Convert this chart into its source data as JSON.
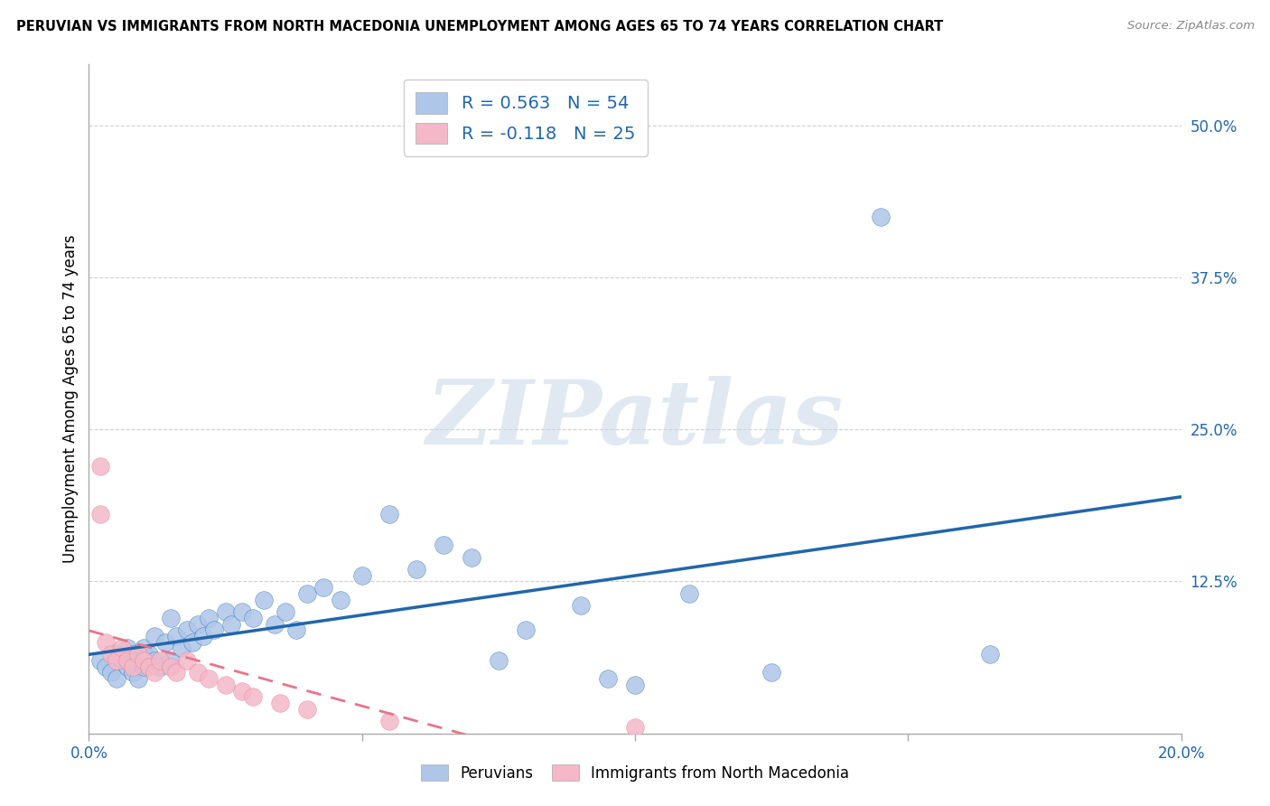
{
  "title": "PERUVIAN VS IMMIGRANTS FROM NORTH MACEDONIA UNEMPLOYMENT AMONG AGES 65 TO 74 YEARS CORRELATION CHART",
  "source": "Source: ZipAtlas.com",
  "ylabel": "Unemployment Among Ages 65 to 74 years",
  "xlim": [
    0.0,
    0.2
  ],
  "ylim": [
    -0.01,
    0.55
  ],
  "plot_ylim": [
    0.0,
    0.55
  ],
  "xticks": [
    0.0,
    0.05,
    0.1,
    0.15,
    0.2
  ],
  "xtick_labels": [
    "0.0%",
    "",
    "",
    "",
    "20.0%"
  ],
  "ytick_labels": [
    "12.5%",
    "25.0%",
    "37.5%",
    "50.0%"
  ],
  "yticks": [
    0.125,
    0.25,
    0.375,
    0.5
  ],
  "blue_color": "#aec6e8",
  "blue_line_color": "#2166ac",
  "pink_color": "#f4b8c8",
  "pink_line_color": "#e8748a",
  "R_blue": 0.563,
  "N_blue": 54,
  "R_pink": -0.118,
  "N_pink": 25,
  "peruvians_x": [
    0.002,
    0.003,
    0.004,
    0.005,
    0.005,
    0.006,
    0.007,
    0.007,
    0.008,
    0.008,
    0.009,
    0.009,
    0.01,
    0.01,
    0.011,
    0.012,
    0.012,
    0.013,
    0.014,
    0.015,
    0.015,
    0.016,
    0.017,
    0.018,
    0.019,
    0.02,
    0.021,
    0.022,
    0.023,
    0.025,
    0.026,
    0.028,
    0.03,
    0.032,
    0.034,
    0.036,
    0.038,
    0.04,
    0.043,
    0.046,
    0.05,
    0.055,
    0.06,
    0.065,
    0.07,
    0.075,
    0.08,
    0.09,
    0.095,
    0.1,
    0.11,
    0.125,
    0.145,
    0.165
  ],
  "peruvians_y": [
    0.06,
    0.055,
    0.05,
    0.065,
    0.045,
    0.06,
    0.055,
    0.07,
    0.065,
    0.05,
    0.06,
    0.045,
    0.07,
    0.055,
    0.065,
    0.06,
    0.08,
    0.055,
    0.075,
    0.06,
    0.095,
    0.08,
    0.07,
    0.085,
    0.075,
    0.09,
    0.08,
    0.095,
    0.085,
    0.1,
    0.09,
    0.1,
    0.095,
    0.11,
    0.09,
    0.1,
    0.085,
    0.115,
    0.12,
    0.11,
    0.13,
    0.18,
    0.135,
    0.155,
    0.145,
    0.06,
    0.085,
    0.105,
    0.045,
    0.04,
    0.115,
    0.05,
    0.425,
    0.065
  ],
  "macedonia_x": [
    0.002,
    0.002,
    0.003,
    0.004,
    0.005,
    0.006,
    0.007,
    0.008,
    0.009,
    0.01,
    0.011,
    0.012,
    0.013,
    0.015,
    0.016,
    0.018,
    0.02,
    0.022,
    0.025,
    0.028,
    0.03,
    0.035,
    0.04,
    0.055,
    0.1
  ],
  "macedonia_y": [
    0.22,
    0.18,
    0.075,
    0.065,
    0.06,
    0.07,
    0.06,
    0.055,
    0.065,
    0.06,
    0.055,
    0.05,
    0.06,
    0.055,
    0.05,
    0.06,
    0.05,
    0.045,
    0.04,
    0.035,
    0.03,
    0.025,
    0.02,
    0.01,
    0.005
  ],
  "watermark": "ZIPatlas",
  "background_color": "#ffffff",
  "grid_color": "#d0d0d0"
}
